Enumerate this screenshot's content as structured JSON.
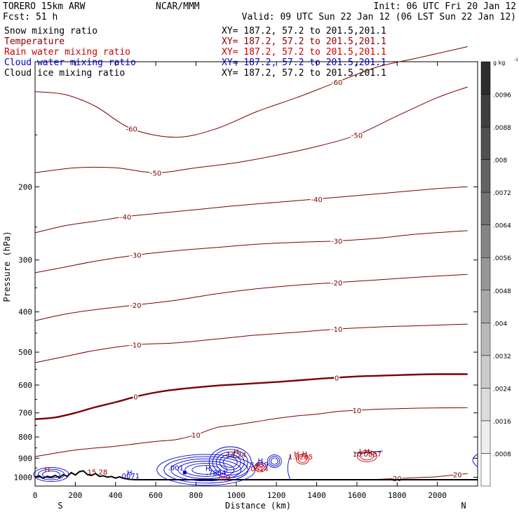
{
  "header": {
    "model": "TORERO  15km ARW",
    "center": "NCAR/MMM",
    "init": "Init: 06 UTC Fri 20 Jan 12",
    "fcst": "Fcst:   51 h",
    "valid": "Valid: 09 UTC Sun 22 Jan 12 (06 LST Sun 22 Jan 12)"
  },
  "legend": [
    {
      "label": "Snow mixing ratio",
      "xy": "XY= 187.2, 57.2 to 201.5,201.1",
      "color": "#000000"
    },
    {
      "label": "Temperature",
      "xy": "XY= 187.2, 57.2 to 201.5,201.1",
      "color": "#8b0000"
    },
    {
      "label": "Rain water mixing ratio",
      "xy": "XY= 187.2, 57.2 to 201.5,201.1",
      "color": "#cc0000"
    },
    {
      "label": "Cloud water mixing ratio",
      "xy": "XY= 187.2, 57.2 to 201.5,201.1",
      "color": "#0000cc"
    },
    {
      "label": "Cloud ice mixing ratio",
      "xy": "XY= 187.2, 57.2 to 201.5,201.1",
      "color": "#000000"
    }
  ],
  "chart_data": {
    "type": "contour-cross-section",
    "xlabel": "Distance (km)",
    "ylabel": "Pressure (hPa)",
    "xlim": [
      0,
      2200
    ],
    "ylim": [
      1050,
      100
    ],
    "x_ticks": [
      0,
      200,
      400,
      600,
      800,
      1000,
      1200,
      1400,
      1600,
      1800,
      2000
    ],
    "x_tick_labels": [
      "0",
      "200",
      "400",
      "600",
      "800",
      "1000",
      "1200",
      "1400",
      "1600",
      "1800",
      "2000"
    ],
    "y_ticks": [
      200,
      300,
      400,
      500,
      600,
      700,
      800,
      900,
      1000
    ],
    "y_tick_labels": [
      "200",
      "300",
      "400",
      "500",
      "600",
      "700",
      "800",
      "900",
      "1000"
    ],
    "endpoints": {
      "left": "S",
      "right": "N"
    },
    "colorbar": {
      "unit": "g kg",
      "unit_exp": "-1",
      "ticks": [
        ".0008",
        ".0016",
        ".0024",
        ".0032",
        ".004",
        ".0048",
        ".0056",
        ".0064",
        ".0072",
        ".008",
        ".0088",
        ".0096"
      ]
    },
    "temperature_contours": [
      {
        "level": -60,
        "label": "-60",
        "points": [
          [
            0,
            118
          ],
          [
            150,
            120
          ],
          [
            300,
            128
          ],
          [
            480,
            145
          ],
          [
            700,
            152
          ],
          [
            900,
            145
          ],
          [
            1100,
            132
          ],
          [
            1300,
            122
          ],
          [
            1500,
            112
          ],
          [
            1700,
            103
          ],
          [
            1900,
            98
          ],
          [
            2150,
            92
          ]
        ]
      },
      {
        "level": -50,
        "label": "-50",
        "points": [
          [
            0,
            185
          ],
          [
            200,
            180
          ],
          [
            400,
            180
          ],
          [
            600,
            185
          ],
          [
            800,
            180
          ],
          [
            1000,
            175
          ],
          [
            1200,
            168
          ],
          [
            1400,
            160
          ],
          [
            1600,
            150
          ],
          [
            1800,
            135
          ],
          [
            2000,
            122
          ],
          [
            2150,
            115
          ]
        ]
      },
      {
        "level": -40,
        "label": "-40",
        "points": [
          [
            0,
            258
          ],
          [
            150,
            248
          ],
          [
            300,
            242
          ],
          [
            450,
            236
          ],
          [
            600,
            232
          ],
          [
            800,
            227
          ],
          [
            1000,
            222
          ],
          [
            1200,
            218
          ],
          [
            1400,
            214
          ],
          [
            1600,
            210
          ],
          [
            1800,
            206
          ],
          [
            2000,
            202
          ],
          [
            2150,
            200
          ]
        ]
      },
      {
        "level": -30,
        "label": "-30",
        "points": [
          [
            0,
            322
          ],
          [
            150,
            312
          ],
          [
            300,
            302
          ],
          [
            500,
            292
          ],
          [
            700,
            285
          ],
          [
            900,
            280
          ],
          [
            1100,
            275
          ],
          [
            1300,
            272
          ],
          [
            1500,
            270
          ],
          [
            1700,
            266
          ],
          [
            1900,
            260
          ],
          [
            2150,
            255
          ]
        ]
      },
      {
        "level": -20,
        "label": "-20",
        "points": [
          [
            0,
            420
          ],
          [
            150,
            405
          ],
          [
            300,
            395
          ],
          [
            500,
            385
          ],
          [
            700,
            375
          ],
          [
            900,
            362
          ],
          [
            1100,
            352
          ],
          [
            1300,
            345
          ],
          [
            1500,
            340
          ],
          [
            1700,
            335
          ],
          [
            1900,
            330
          ],
          [
            2150,
            325
          ]
        ]
      },
      {
        "level": -10,
        "label": "-10",
        "points": [
          [
            0,
            530
          ],
          [
            150,
            512
          ],
          [
            300,
            495
          ],
          [
            500,
            480
          ],
          [
            700,
            475
          ],
          [
            900,
            465
          ],
          [
            1100,
            455
          ],
          [
            1300,
            448
          ],
          [
            1500,
            440
          ],
          [
            1700,
            435
          ],
          [
            1900,
            432
          ],
          [
            2150,
            428
          ]
        ]
      },
      {
        "level": 0,
        "label": "0",
        "points": [
          [
            0,
            725
          ],
          [
            100,
            718
          ],
          [
            200,
            700
          ],
          [
            300,
            678
          ],
          [
            400,
            660
          ],
          [
            500,
            640
          ],
          [
            600,
            625
          ],
          [
            700,
            615
          ],
          [
            800,
            608
          ],
          [
            900,
            602
          ],
          [
            1000,
            598
          ],
          [
            1100,
            594
          ],
          [
            1200,
            590
          ],
          [
            1300,
            585
          ],
          [
            1400,
            580
          ],
          [
            1500,
            576
          ],
          [
            1600,
            572
          ],
          [
            1700,
            570
          ],
          [
            1800,
            568
          ],
          [
            1900,
            566
          ],
          [
            2000,
            565
          ],
          [
            2150,
            565
          ]
        ]
      },
      {
        "level": 10,
        "label": "10",
        "points": [
          [
            0,
            892
          ],
          [
            200,
            860
          ],
          [
            400,
            842
          ],
          [
            600,
            820
          ],
          [
            700,
            812
          ],
          [
            800,
            790
          ],
          [
            900,
            760
          ],
          [
            1000,
            748
          ],
          [
            1100,
            735
          ],
          [
            1200,
            722
          ],
          [
            1300,
            712
          ],
          [
            1400,
            705
          ],
          [
            1500,
            695
          ],
          [
            1600,
            690
          ],
          [
            1700,
            686
          ],
          [
            1800,
            684
          ],
          [
            1900,
            682
          ],
          [
            2000,
            681
          ],
          [
            2150,
            680
          ]
        ]
      },
      {
        "level": 20,
        "label": "20",
        "points": [
          [
            1700,
            1012
          ],
          [
            1800,
            1007
          ],
          [
            1900,
            1002
          ],
          [
            2000,
            997
          ],
          [
            2100,
            985
          ],
          [
            2150,
            980
          ]
        ]
      }
    ],
    "annotations": [
      {
        "text": "H",
        "x": 60,
        "p": 972,
        "color": "#cc0000"
      },
      {
        "text": "15.28",
        "x": 310,
        "p": 985,
        "color": "#8b0000"
      },
      {
        "text": "H",
        "x": 470,
        "p": 988,
        "color": "#0000cc"
      },
      {
        "text": ".0071",
        "x": 470,
        "p": 1007,
        "color": "#0000cc"
      },
      {
        "text": ".001",
        "x": 700,
        "p": 962,
        "color": "#0000cc"
      },
      {
        "text": "H",
        "x": 860,
        "p": 965,
        "color": "#0000cc"
      },
      {
        "text": ".7804",
        "x": 900,
        "p": 988,
        "color": "#0000cc"
      },
      {
        "text": ".001",
        "x": 940,
        "p": 1020,
        "color": "#cc0000"
      },
      {
        "text": "H",
        "x": 1000,
        "p": 880,
        "color": "#8b0000"
      },
      {
        "text": "14.24",
        "x": 1000,
        "p": 895,
        "color": "#8b0000"
      },
      {
        "text": "H",
        "x": 1120,
        "p": 925,
        "color": "#0000cc"
      },
      {
        "text": ".1439",
        "x": 1110,
        "p": 945,
        "color": "#0000cc"
      },
      {
        "text": "H",
        "x": 1110,
        "p": 950,
        "color": "#cc0000"
      },
      {
        "text": ".0014",
        "x": 1110,
        "p": 968,
        "color": "#cc0000"
      },
      {
        "text": "H",
        "x": 1300,
        "p": 890,
        "color": "#cc0000"
      },
      {
        "text": "H",
        "x": 1340,
        "p": 890,
        "color": "#8b0000"
      },
      {
        "text": "1.0285",
        "x": 1320,
        "p": 905,
        "color": "#cc0000"
      },
      {
        "text": "L",
        "x": 1620,
        "p": 878,
        "color": "#8b0000"
      },
      {
        "text": "H",
        "x": 1650,
        "p": 878,
        "color": "#8b0000"
      },
      {
        "text": "10.0887",
        "x": 1650,
        "p": 892,
        "color": "#8b0000"
      }
    ]
  }
}
